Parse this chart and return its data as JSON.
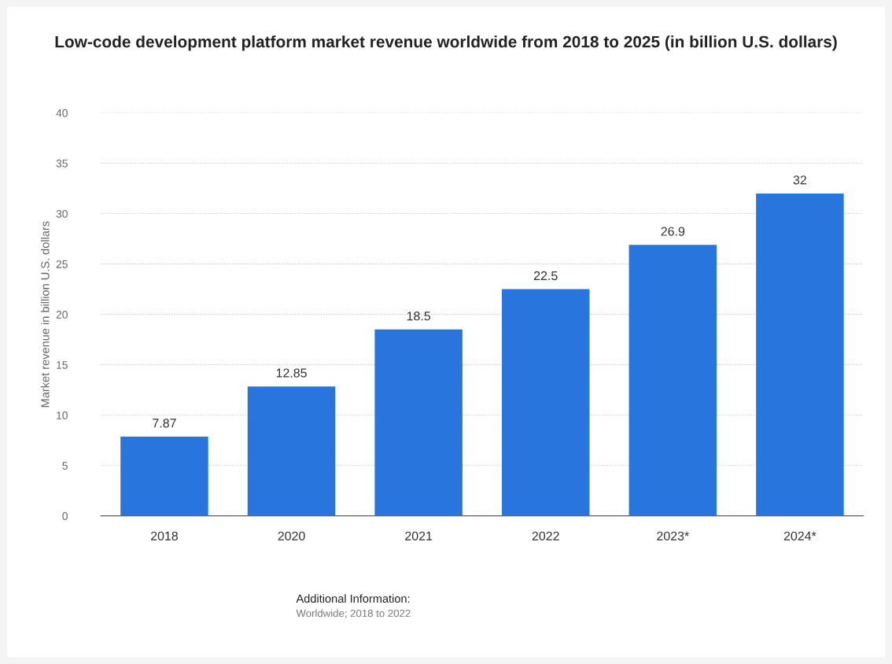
{
  "chart_data": {
    "type": "bar",
    "title": "Low-code development platform market revenue worldwide from 2018 to 2025 (in billion U.S. dollars)",
    "ylabel": "Market revenue in billion U.S. dollars",
    "categories": [
      "2018",
      "2020",
      "2021",
      "2022",
      "2023*",
      "2024*"
    ],
    "values": [
      7.87,
      12.85,
      18.5,
      22.5,
      26.9,
      32
    ],
    "value_labels": [
      "7.87",
      "12.85",
      "18.5",
      "22.5",
      "26.9",
      "32"
    ],
    "color": "#2875dd",
    "ylim": [
      0,
      40
    ],
    "yticks": [
      0,
      5,
      10,
      15,
      20,
      25,
      30,
      35,
      40
    ],
    "grid": "y",
    "annotations": [
      "Additional Information:",
      "Worldwide; 2018 to 2022"
    ]
  }
}
